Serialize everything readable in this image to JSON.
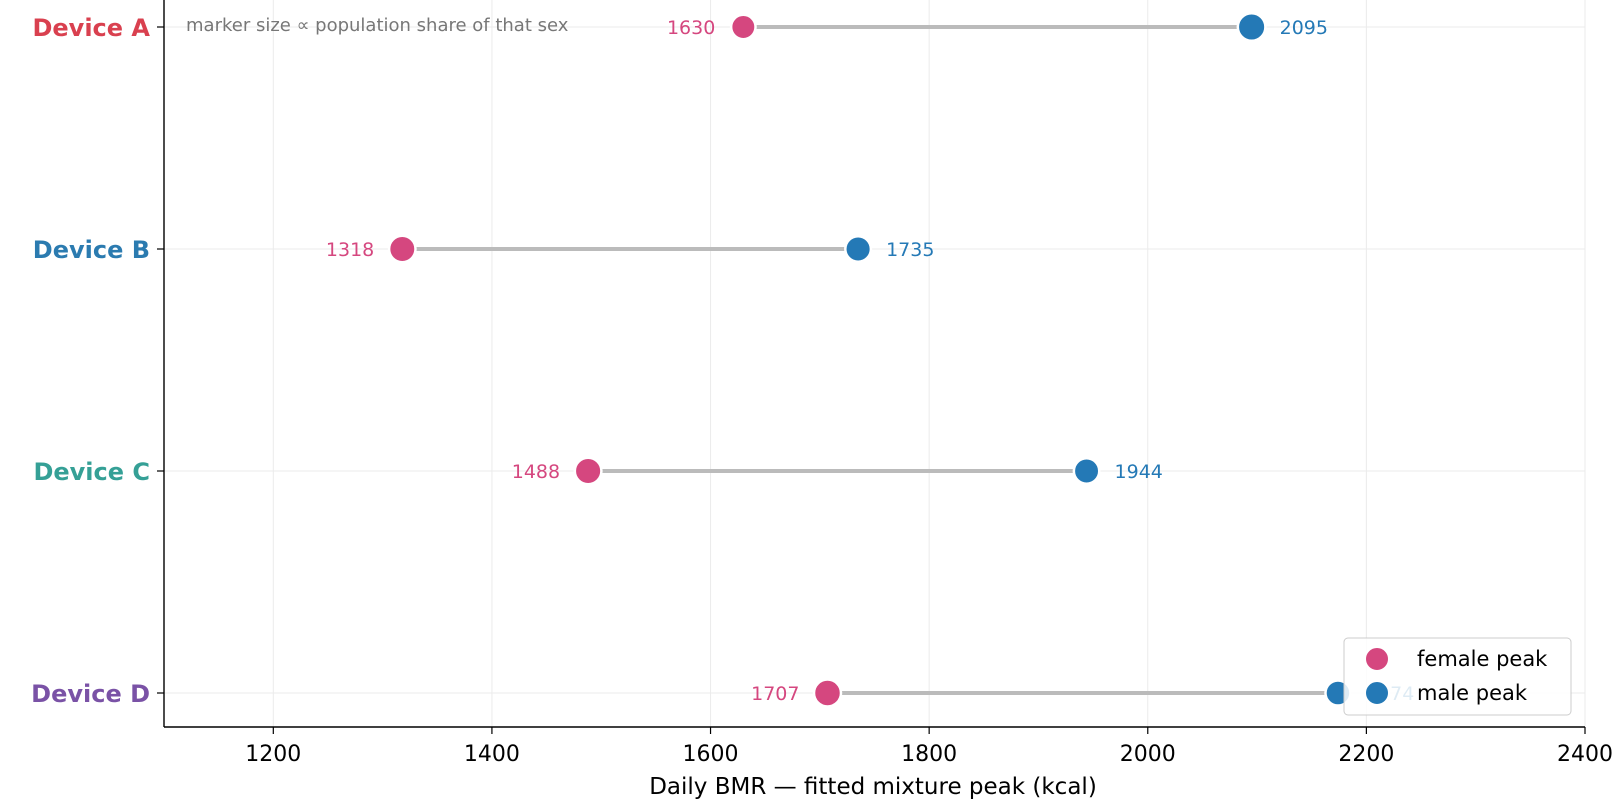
{
  "chart_data": {
    "type": "dumbbell",
    "xlabel": "Daily BMR — fitted mixture peak (kcal)",
    "xlim": [
      1100,
      2400
    ],
    "xticks": [
      1200,
      1400,
      1600,
      1800,
      2000,
      2200,
      2400
    ],
    "grid": true,
    "annotation": "marker size ∝ population share of that sex",
    "legend": {
      "placement": "lower-right",
      "entries": [
        {
          "label": "female peak",
          "color": "#d5477f"
        },
        {
          "label": "male peak",
          "color": "#2479b6"
        }
      ]
    },
    "colors": {
      "female": "#d5477f",
      "male": "#2479b6",
      "connector": "#bbbbbb"
    },
    "categories": [
      {
        "label": "Device A",
        "color": "#d9404f",
        "female": 1630,
        "male": 2095,
        "female_share": 0.42,
        "male_share": 0.58
      },
      {
        "label": "Device B",
        "color": "#2b7bb0",
        "female": 1318,
        "male": 1735,
        "female_share": 0.52,
        "male_share": 0.48
      },
      {
        "label": "Device C",
        "color": "#35a096",
        "female": 1488,
        "male": 1944,
        "female_share": 0.53,
        "male_share": 0.47
      },
      {
        "label": "Device D",
        "color": "#7a52a6",
        "female": 1707,
        "male": 2174,
        "female_share": 0.55,
        "male_share": 0.45
      }
    ]
  }
}
